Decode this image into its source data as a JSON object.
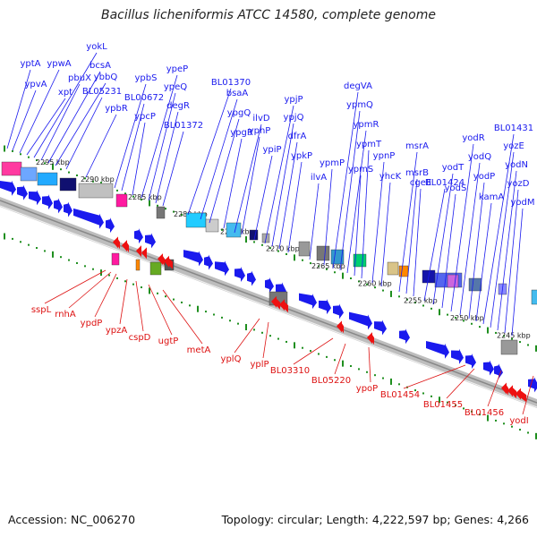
{
  "title": "Bacillus licheniformis ATCC 14580, complete genome",
  "footer": {
    "accession": "Accession: NC_006270",
    "topology": "Topology: circular; Length: 4,222,597 bp; Genes: 4,266"
  },
  "colors": {
    "forward_gene": "#1a1aee",
    "reverse_gene": "#ee1111",
    "label_forward": "#1a1aee",
    "label_reverse": "#dd1111",
    "backbone": "#bdbdbd",
    "tick_track": "#1f8f1f"
  },
  "kbp_ticks": [
    "2295 kbp",
    "2290 kbp",
    "2285 kbp",
    "2280 kbp",
    "2275 kbp",
    "2270 kbp",
    "2265 kbp",
    "2260 kbp",
    "2255 kbp",
    "2250 kbp",
    "2245 kbp"
  ],
  "forward_genes": [
    "yptA",
    "ypvA",
    "ypwA",
    "xpt",
    "yokL",
    "pbuX",
    "bcsA",
    "ybbQ",
    "BL05231",
    "ypbR",
    "ypbS",
    "BL00672",
    "ypcP",
    "ypeP",
    "ypeQ",
    "degR",
    "BL01372",
    "BL01370",
    "bsaA",
    "ypgQ",
    "ypgR",
    "ilvD",
    "yphP",
    "ypiP",
    "ypjP",
    "ypjQ",
    "dfrA",
    "ypkP",
    "ilvA",
    "ypmP",
    "degVA",
    "ypmQ",
    "ypmR",
    "ypmS",
    "ypmT",
    "ypnP",
    "yhcK",
    "msrA",
    "msrB",
    "cgeE",
    "BL01424",
    "yodT",
    "yodS",
    "yodR",
    "yodQ",
    "yodP",
    "kamA",
    "BL01431",
    "yozE",
    "yodN",
    "yozD",
    "yodM"
  ],
  "reverse_genes": [
    "sspL",
    "rnhA",
    "ypdP",
    "ypzA",
    "cspD",
    "ugtP",
    "metA",
    "yplQ",
    "yplP",
    "BL03310",
    "BL05220",
    "ypoP",
    "BL01454",
    "BL01455",
    "BL01456",
    "yodI"
  ]
}
